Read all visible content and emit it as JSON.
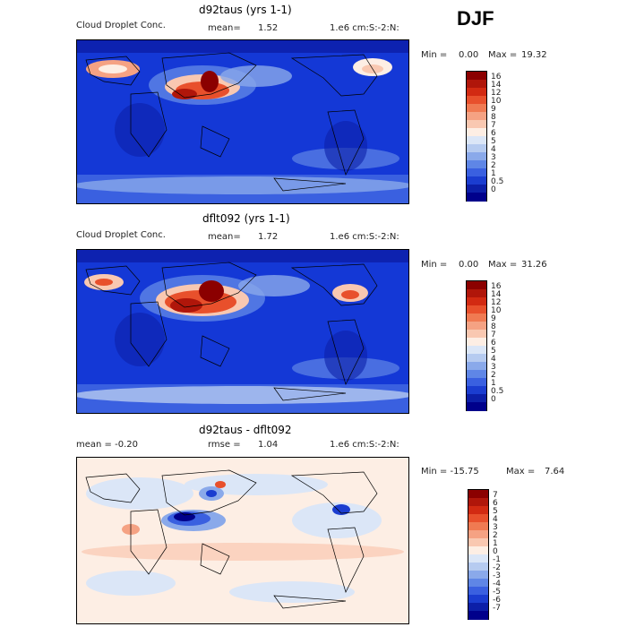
{
  "season": "DJF",
  "panels": [
    {
      "id": "p1",
      "title": "d92taus (yrs 1-1)",
      "header_left": "Cloud Droplet Conc.",
      "mean_label": "mean=",
      "mean_value": "1.52",
      "units_label": "1.e6 cm:S:-2:N:",
      "min_label": "Min =",
      "min_value": "0.00",
      "max_label": "Max =",
      "max_value": "19.32",
      "colorbar_ticks": [
        "16",
        "14",
        "12",
        "10",
        "9",
        "8",
        "7",
        "6",
        "5",
        "4",
        "3",
        "2",
        "1",
        "0.5",
        "0"
      ],
      "colors": [
        "#8b0000",
        "#b0160a",
        "#d22a12",
        "#e8502c",
        "#f07a52",
        "#f5a283",
        "#f9c8b1",
        "#fdeee4",
        "#dbe6f7",
        "#b6cbf0",
        "#8aa9ea",
        "#5f86e6",
        "#3a60e0",
        "#1b3dd0",
        "#0c1fa8",
        "#00008b"
      ]
    },
    {
      "id": "p2",
      "title": "dflt092 (yrs 1-1)",
      "header_left": "Cloud Droplet Conc.",
      "mean_label": "mean=",
      "mean_value": "1.72",
      "units_label": "1.e6 cm:S:-2:N:",
      "min_label": "Min =",
      "min_value": "0.00",
      "max_label": "Max =",
      "max_value": "31.26",
      "colorbar_ticks": [
        "16",
        "14",
        "12",
        "10",
        "9",
        "8",
        "7",
        "6",
        "5",
        "4",
        "3",
        "2",
        "1",
        "0.5",
        "0"
      ],
      "colors": [
        "#8b0000",
        "#b0160a",
        "#d22a12",
        "#e8502c",
        "#f07a52",
        "#f5a283",
        "#f9c8b1",
        "#fdeee4",
        "#dbe6f7",
        "#b6cbf0",
        "#8aa9ea",
        "#5f86e6",
        "#3a60e0",
        "#1b3dd0",
        "#0c1fa8",
        "#00008b"
      ]
    },
    {
      "id": "p3",
      "title": "d92taus - dflt092",
      "header_left": "mean =  -0.20",
      "mean_label": "rmse =",
      "mean_value": "1.04",
      "units_label": "1.e6 cm:S:-2:N:",
      "min_label": "Min = -15.75",
      "min_value": "",
      "max_label": "Max =",
      "max_value": "7.64",
      "colorbar_ticks": [
        "7",
        "6",
        "5",
        "4",
        "3",
        "2",
        "1",
        "0",
        "-1",
        "-2",
        "-3",
        "-4",
        "-5",
        "-6",
        "-7"
      ],
      "colors": [
        "#8b0000",
        "#b0160a",
        "#d22a12",
        "#e8502c",
        "#f07a52",
        "#f5a283",
        "#f9c8b1",
        "#fdeee4",
        "#dbe6f7",
        "#b6cbf0",
        "#8aa9ea",
        "#5f86e6",
        "#3a60e0",
        "#1b3dd0",
        "#0c1fa8",
        "#00008b"
      ]
    }
  ]
}
